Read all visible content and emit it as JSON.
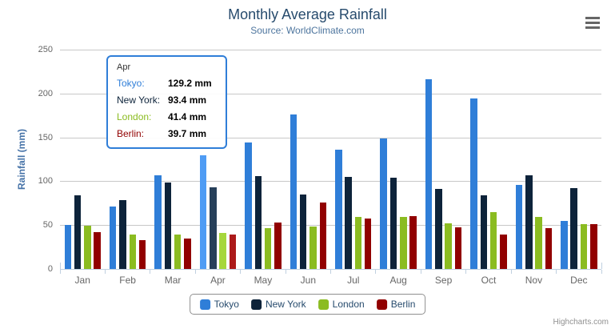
{
  "chart_data": {
    "type": "bar",
    "title": "Monthly Average Rainfall",
    "subtitle": "Source: WorldClimate.com",
    "xlabel": "",
    "ylabel": "Rainfall (mm)",
    "ylim": [
      0,
      250
    ],
    "yticks": [
      0,
      50,
      100,
      150,
      200,
      250
    ],
    "grid": true,
    "legend_position": "bottom",
    "hovered_category": "Apr",
    "categories": [
      "Jan",
      "Feb",
      "Mar",
      "Apr",
      "May",
      "Jun",
      "Jul",
      "Aug",
      "Sep",
      "Oct",
      "Nov",
      "Dec"
    ],
    "series": [
      {
        "name": "Tokyo",
        "color": "#2f7ed8",
        "hover_color": "#4f9cf4",
        "values": [
          49.9,
          71.5,
          106.4,
          129.2,
          144.0,
          176.0,
          135.6,
          148.5,
          216.4,
          194.1,
          95.6,
          54.4
        ]
      },
      {
        "name": "New York",
        "color": "#0d233a",
        "hover_color": "#27405a",
        "values": [
          83.6,
          78.8,
          98.5,
          93.4,
          106.0,
          84.5,
          105.0,
          104.3,
          91.2,
          83.5,
          106.6,
          92.3
        ]
      },
      {
        "name": "London",
        "color": "#8bbc21",
        "hover_color": "#a6d73c",
        "values": [
          48.9,
          38.8,
          39.3,
          41.4,
          47.0,
          48.3,
          59.0,
          59.6,
          52.4,
          65.2,
          59.3,
          51.2
        ]
      },
      {
        "name": "Berlin",
        "color": "#910000",
        "hover_color": "#ac1a1a",
        "values": [
          42.4,
          33.2,
          34.5,
          39.7,
          52.6,
          75.5,
          57.4,
          60.4,
          47.6,
          39.1,
          46.8,
          51.1
        ]
      }
    ]
  },
  "tooltip": {
    "header": "Apr",
    "border_color": "#2f7ed8",
    "rows": [
      {
        "name": "Tokyo:",
        "value": "129.2 mm",
        "color": "#2f7ed8"
      },
      {
        "name": "New York:",
        "value": "93.4 mm",
        "color": "#0d233a"
      },
      {
        "name": "London:",
        "value": "41.4 mm",
        "color": "#8bbc21"
      },
      {
        "name": "Berlin:",
        "value": "39.7 mm",
        "color": "#910000"
      }
    ]
  },
  "legend": {
    "items": [
      {
        "label": "Tokyo",
        "color": "#2f7ed8"
      },
      {
        "label": "New York",
        "color": "#0d233a"
      },
      {
        "label": "London",
        "color": "#8bbc21"
      },
      {
        "label": "Berlin",
        "color": "#910000"
      }
    ]
  },
  "credits": "Highcharts.com",
  "icons": {
    "menu": "hamburger-icon"
  },
  "colors": {
    "title": "#274b6d",
    "subtitle": "#4d759e",
    "axis_title": "#4572a7",
    "axis_labels": "#666666",
    "grid_line": "#c8c8c8",
    "axis_line": "#c0d0e0",
    "legend_border": "#909090",
    "legend_text": "#274b6d",
    "credits_text": "#909090"
  }
}
